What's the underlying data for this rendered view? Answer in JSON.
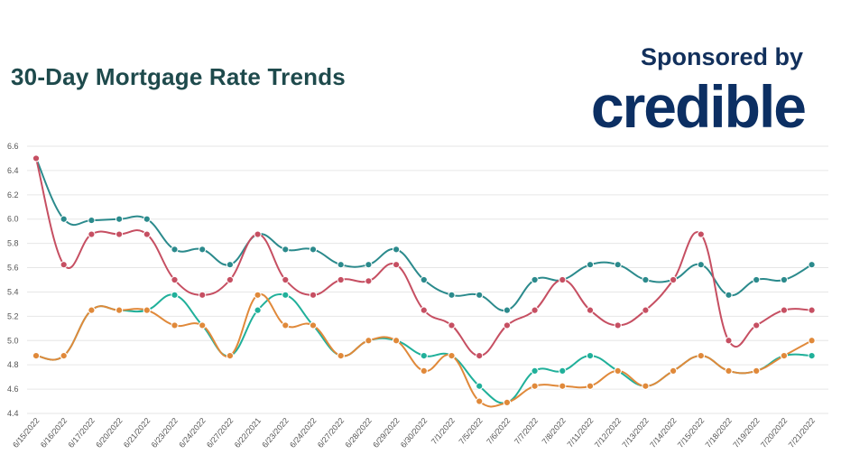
{
  "header": {
    "title": "30-Day Mortgage Rate Trends",
    "sponsored_label": "Sponsored by",
    "brand": "credible"
  },
  "chart_data": {
    "type": "line",
    "title": "30-Day Mortgage Rate Trends",
    "xlabel": "",
    "ylabel": "",
    "ylim": [
      4.4,
      6.6
    ],
    "yticks": [
      "6.6",
      "6.4",
      "6.2",
      "6.0",
      "5.8",
      "5.6",
      "5.4",
      "5.2",
      "5.0",
      "4.8",
      "4.6",
      "4.4"
    ],
    "grid": true,
    "legend": "none",
    "categories": [
      "6/15/2022",
      "6/16/2022",
      "6/17/2022",
      "6/20/2022",
      "6/21/2022",
      "6/23/2022",
      "6/24/2022",
      "6/27/2022",
      "6/22/2021",
      "6/23/2022",
      "6/24/2022",
      "6/27/2022",
      "6/28/2022",
      "6/29/2022",
      "6/30/2022",
      "7/1/2022",
      "7/5/2022",
      "7/6/2022",
      "7/7/2022",
      "7/8/2022",
      "7/11/2022",
      "7/12/2022",
      "7/13/2022",
      "7/14/2022",
      "7/15/2022",
      "7/18/2022",
      "7/19/2022",
      "7/20/2022",
      "7/21/2022"
    ],
    "series": [
      {
        "color": "#2b8a8c",
        "values": [
          6.5,
          6.0,
          5.99,
          6.0,
          6.0,
          5.75,
          5.75,
          5.625,
          5.875,
          5.75,
          5.75,
          5.625,
          5.625,
          5.75,
          5.5,
          5.375,
          5.375,
          5.25,
          5.5,
          5.5,
          5.625,
          5.625,
          5.5,
          5.5,
          5.625,
          5.375,
          5.5,
          5.5,
          5.625
        ]
      },
      {
        "color": "#c64f62",
        "values": [
          6.5,
          5.625,
          5.875,
          5.875,
          5.875,
          5.5,
          5.375,
          5.5,
          5.875,
          5.5,
          5.375,
          5.5,
          5.49,
          5.625,
          5.25,
          5.125,
          4.875,
          5.125,
          5.25,
          5.5,
          5.25,
          5.125,
          5.25,
          5.5,
          5.875,
          5.0,
          5.125,
          5.25,
          5.25
        ]
      },
      {
        "color": "#20b09a",
        "values": [
          4.875,
          4.875,
          5.25,
          5.25,
          5.25,
          5.375,
          5.125,
          4.875,
          5.25,
          5.375,
          5.125,
          4.875,
          5.0,
          5.0,
          4.875,
          4.875,
          4.625,
          4.49,
          4.75,
          4.75,
          4.875,
          4.75,
          4.625,
          4.75,
          4.875,
          4.75,
          4.75,
          4.875,
          4.875
        ]
      },
      {
        "color": "#e0893a",
        "values": [
          4.875,
          4.875,
          5.25,
          5.25,
          5.25,
          5.125,
          5.125,
          4.875,
          5.375,
          5.125,
          5.125,
          4.875,
          5.0,
          5.0,
          4.75,
          4.875,
          4.5,
          4.49,
          4.625,
          4.625,
          4.625,
          4.75,
          4.625,
          4.75,
          4.875,
          4.75,
          4.75,
          4.875,
          5.0
        ]
      }
    ]
  }
}
